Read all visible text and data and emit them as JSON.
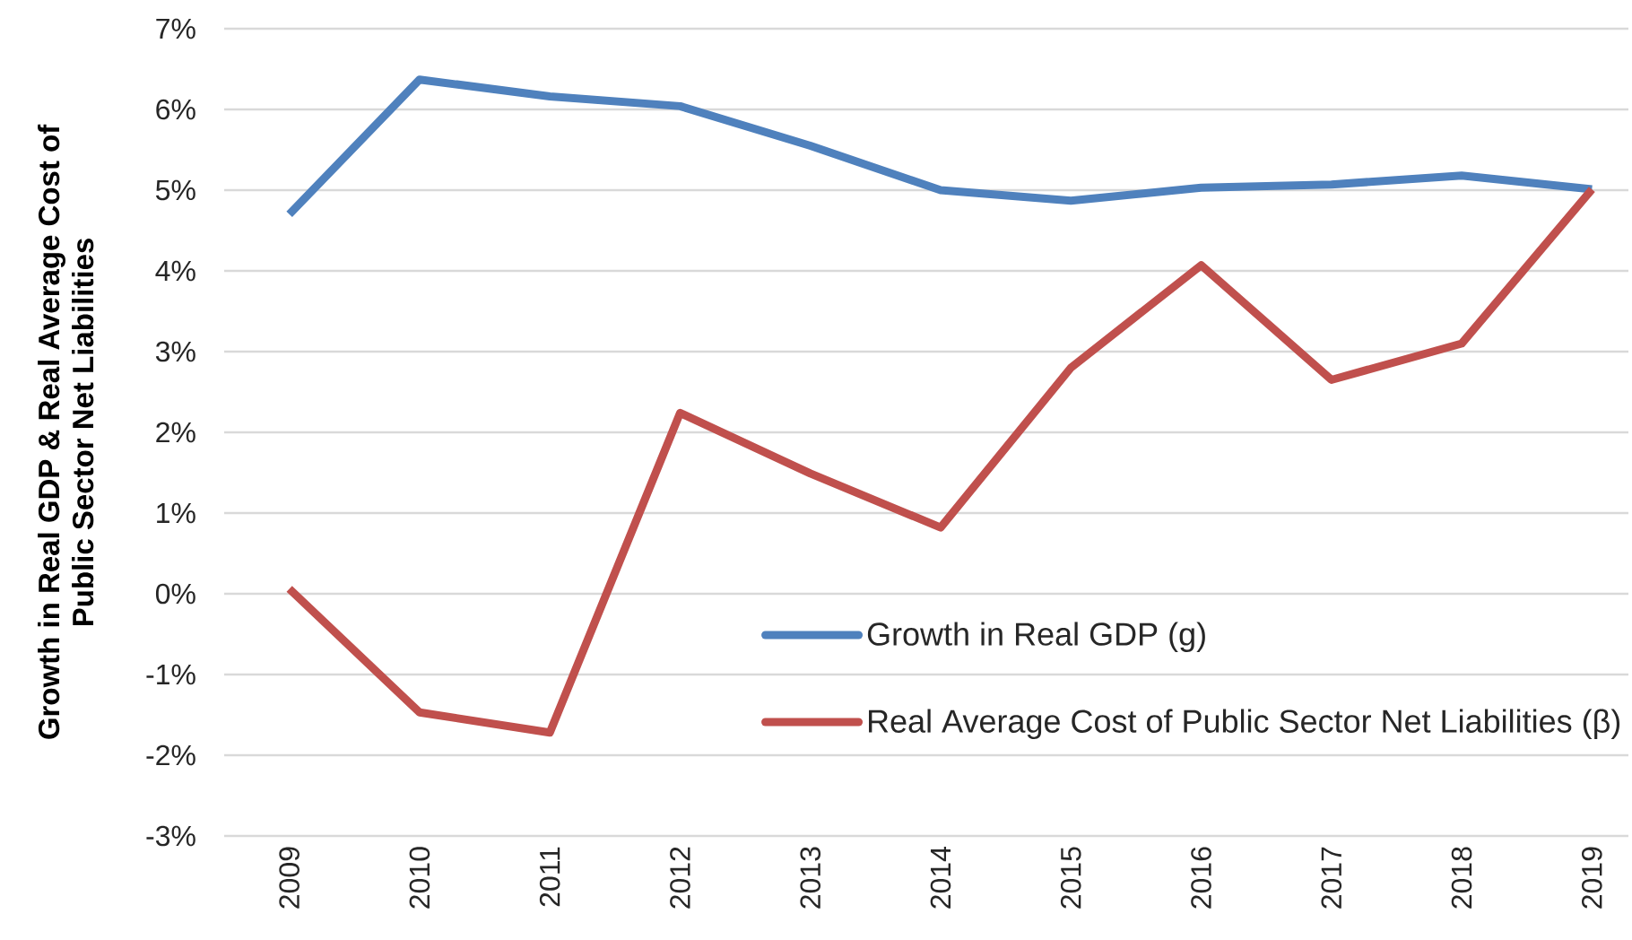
{
  "chart_data": {
    "type": "line",
    "ylabel": "Growth in Real GDP & Real Average Cost of Public Sector Net Liabilities",
    "categories": [
      "2009",
      "2010",
      "2011",
      "2012",
      "2013",
      "2014",
      "2015",
      "2016",
      "2017",
      "2018",
      "2019"
    ],
    "series": [
      {
        "name": "Growth in Real GDP (g)",
        "color": "#4f81bd",
        "values": [
          4.7,
          6.37,
          6.16,
          6.04,
          5.55,
          5.0,
          4.87,
          5.03,
          5.07,
          5.18,
          5.01
        ]
      },
      {
        "name": "Real Average Cost of Public Sector Net Liabilities (β)",
        "color": "#c0504d",
        "values": [
          0.06,
          -1.47,
          -1.72,
          2.24,
          1.49,
          0.82,
          2.8,
          4.07,
          2.65,
          3.1,
          5.01
        ]
      }
    ],
    "ylim": [
      -3,
      7
    ],
    "yticks": [
      {
        "value": -3,
        "label": "-3%"
      },
      {
        "value": -2,
        "label": "-2%"
      },
      {
        "value": -1,
        "label": "-1%"
      },
      {
        "value": 0,
        "label": "0%"
      },
      {
        "value": 1,
        "label": "1%"
      },
      {
        "value": 2,
        "label": "2%"
      },
      {
        "value": 3,
        "label": "3%"
      },
      {
        "value": 4,
        "label": "4%"
      },
      {
        "value": 5,
        "label": "5%"
      },
      {
        "value": 6,
        "label": "6%"
      },
      {
        "value": 7,
        "label": "7%"
      }
    ],
    "grid": "y",
    "legend": "bottom right",
    "marker": "none",
    "line_style": "solid"
  }
}
